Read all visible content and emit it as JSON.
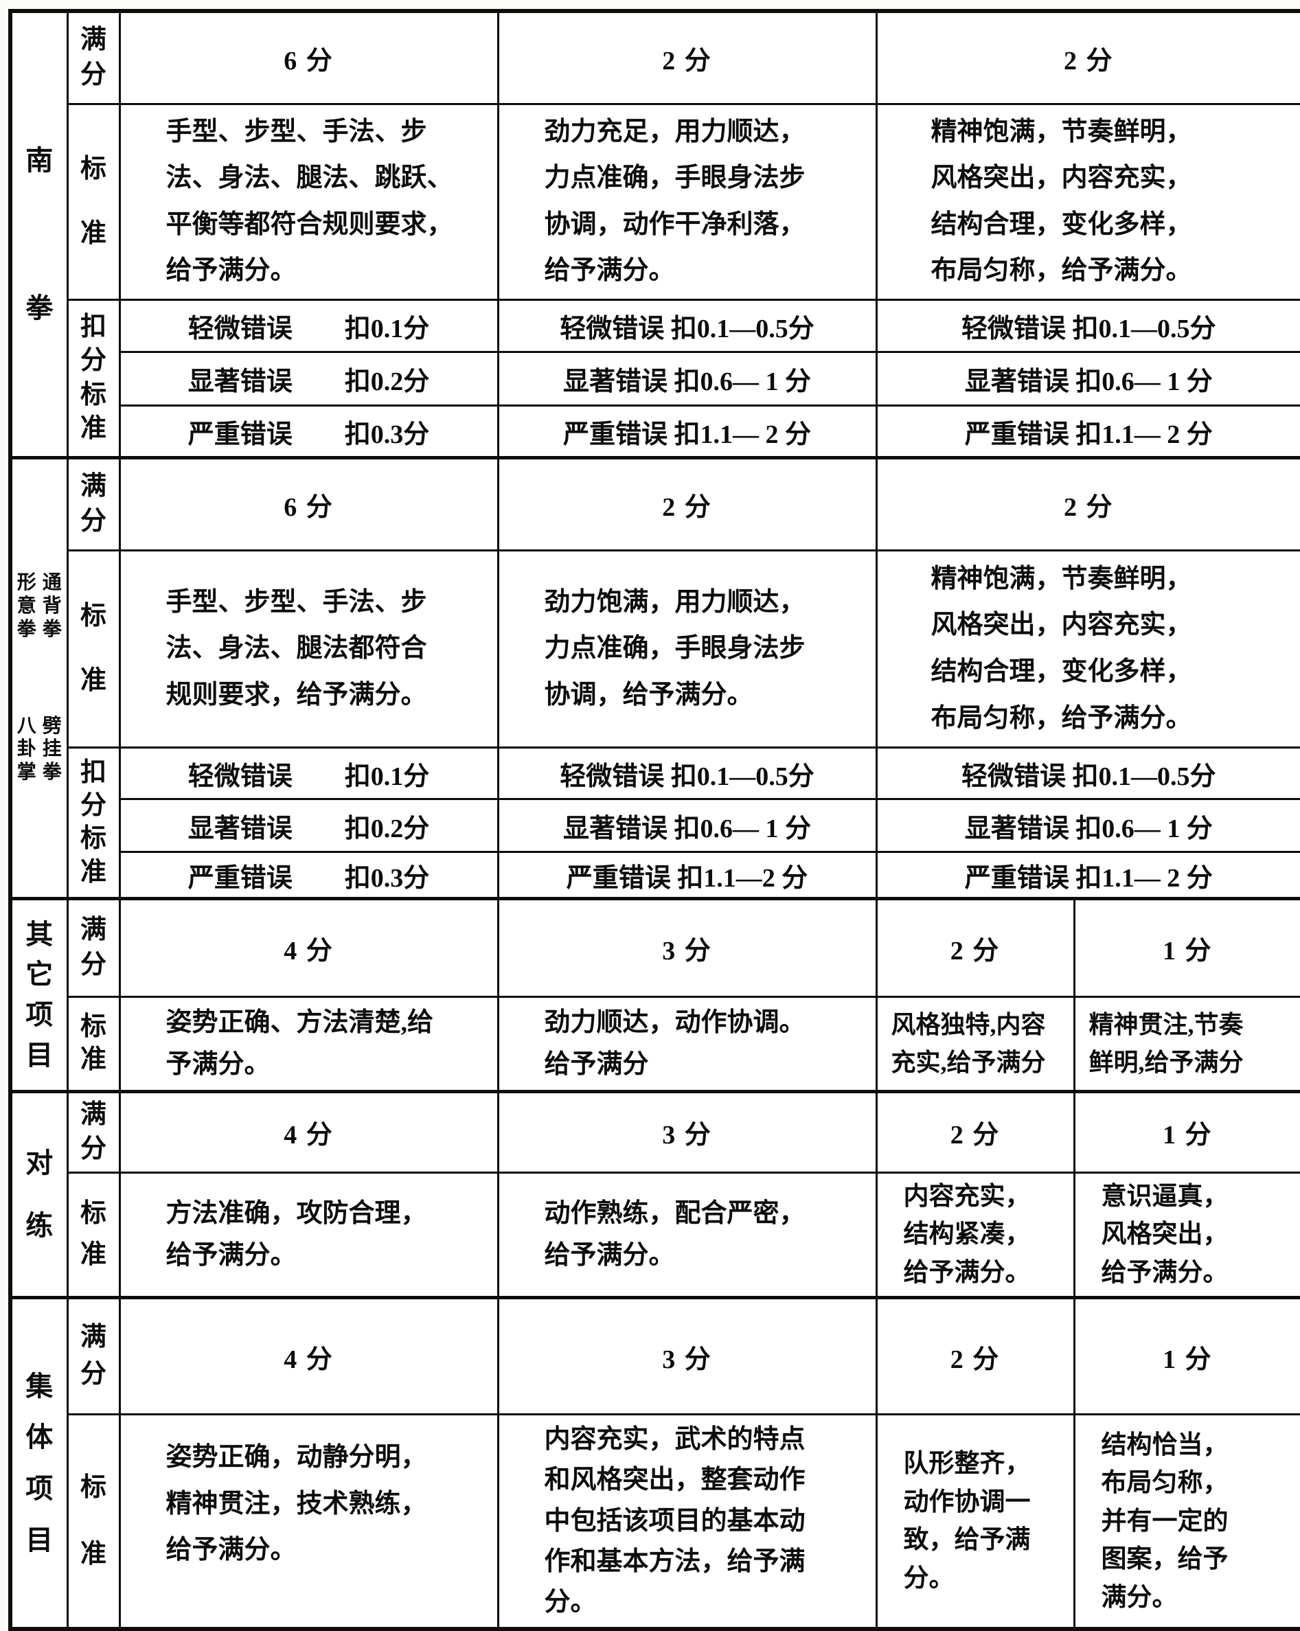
{
  "page": {
    "background": "#ffffff",
    "ink": "#0d0d0d"
  },
  "row_labels": {
    "full_score": "满分",
    "standard": "标准",
    "deduction": "扣分标准"
  },
  "sections": [
    {
      "id": "nanquan",
      "category": "南拳",
      "scores": [
        "6 分",
        "2 分",
        "2 分"
      ],
      "standards": [
        "手型、步型、手法、步\n法、身法、腿法、跳跃、\n平衡等都符合规则要求，\n给予满分。",
        "劲力充足，用力顺达，\n力点准确，手眼身法步\n协调，动作干净利落，\n给予满分。",
        "精神饱满，节奏鲜明，\n风格突出，内容充实，\n结构合理，变化多样，\n布局匀称，给予满分。"
      ],
      "deductions": [
        [
          "轻微错误　　扣0.1分",
          "轻微错误 扣0.1—0.5分",
          "轻微错误 扣0.1—0.5分"
        ],
        [
          "显著错误　　扣0.2分",
          "显著错误 扣0.6— 1 分",
          "显著错误 扣0.6— 1 分"
        ],
        [
          "严重错误　　扣0.3分",
          "严重错误 扣1.1— 2 分",
          "严重错误 扣1.1— 2 分"
        ]
      ]
    },
    {
      "id": "xingyi-tongbei-bagua-pigua",
      "category_parts": [
        "形意拳",
        "通背拳",
        "八卦掌",
        "劈挂拳"
      ],
      "scores": [
        "6 分",
        "2 分",
        "2 分"
      ],
      "standards": [
        "手型、步型、手法、步\n法、身法、腿法都符合\n规则要求，给予满分。",
        "劲力饱满，用力顺达，\n力点准确，手眼身法步\n协调，给予满分。",
        "精神饱满，节奏鲜明，\n风格突出，内容充实，\n结构合理，变化多样，\n布局匀称，给予满分。"
      ],
      "deductions": [
        [
          "轻微错误　　扣0.1分",
          "轻微错误 扣0.1—0.5分",
          "轻微错误 扣0.1—0.5分"
        ],
        [
          "显著错误　　扣0.2分",
          "显著错误 扣0.6— 1 分",
          "显著错误 扣0.6— 1 分"
        ],
        [
          "严重错误　　扣0.3分",
          "严重错误 扣1.1—2 分",
          "严重错误 扣1.1— 2 分"
        ]
      ]
    },
    {
      "id": "other-events",
      "category": "其它项目",
      "scores": [
        "4 分",
        "3 分",
        "2 分",
        "1 分"
      ],
      "standards": [
        "姿势正确、方法清楚,给\n予满分。",
        "劲力顺达，动作协调。\n给予满分",
        "风格独特,内容\n充实,给予满分",
        "精神贯注,节奏\n鲜明,给予满分"
      ]
    },
    {
      "id": "duilian",
      "category": "对练",
      "scores": [
        "4 分",
        "3 分",
        "2 分",
        "1 分"
      ],
      "standards": [
        "方法准确，攻防合理，\n给予满分。",
        "动作熟练，配合严密，\n给予满分。",
        "内容充实，\n结构紧凑，\n给予满分。",
        "意识逼真，\n风格突出，\n给予满分。"
      ]
    },
    {
      "id": "group-events",
      "category": "集体项目",
      "scores": [
        "4 分",
        "3 分",
        "2 分",
        "1 分"
      ],
      "standards": [
        "姿势正确，动静分明，\n精神贯注，技术熟练，\n给予满分。",
        "内容充实，武术的特点\n和风格突出，整套动作\n中包括该项目的基本动\n作和基本方法，给予满\n分。",
        "队形整齐，\n动作协调一\n致，给予满\n分。",
        "结构恰当，\n布局匀称，\n并有一定的\n图案，给予\n满分。"
      ]
    }
  ]
}
